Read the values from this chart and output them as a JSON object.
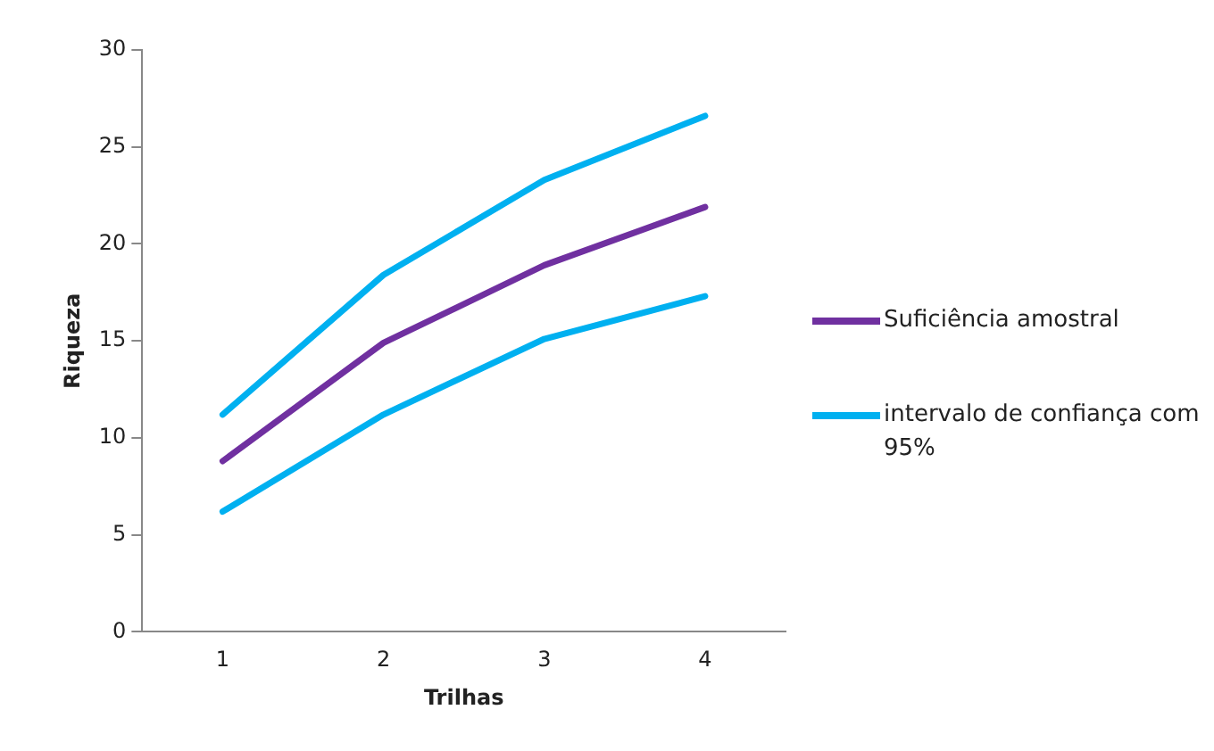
{
  "chart_data": {
    "type": "line",
    "xlabel": "Trilhas",
    "ylabel": "Riqueza",
    "categories": [
      "1",
      "2",
      "3",
      "4"
    ],
    "series": [
      {
        "name": "Suficiência amostral",
        "color": "#7030a0",
        "values": [
          8.8,
          14.9,
          18.9,
          21.9
        ]
      },
      {
        "name": "intervalo de confiança com 95%",
        "color": "#00b0f0",
        "values": [
          11.2,
          18.4,
          23.3,
          26.6
        ]
      },
      {
        "color": "#00b0f0",
        "values": [
          6.2,
          11.2,
          15.1,
          17.3
        ]
      }
    ],
    "ylim": [
      0,
      30
    ],
    "yticks": [
      0,
      5,
      10,
      15,
      20,
      25,
      30
    ],
    "grid": false,
    "legend": "right",
    "marker": "none",
    "line_style": "solid"
  }
}
